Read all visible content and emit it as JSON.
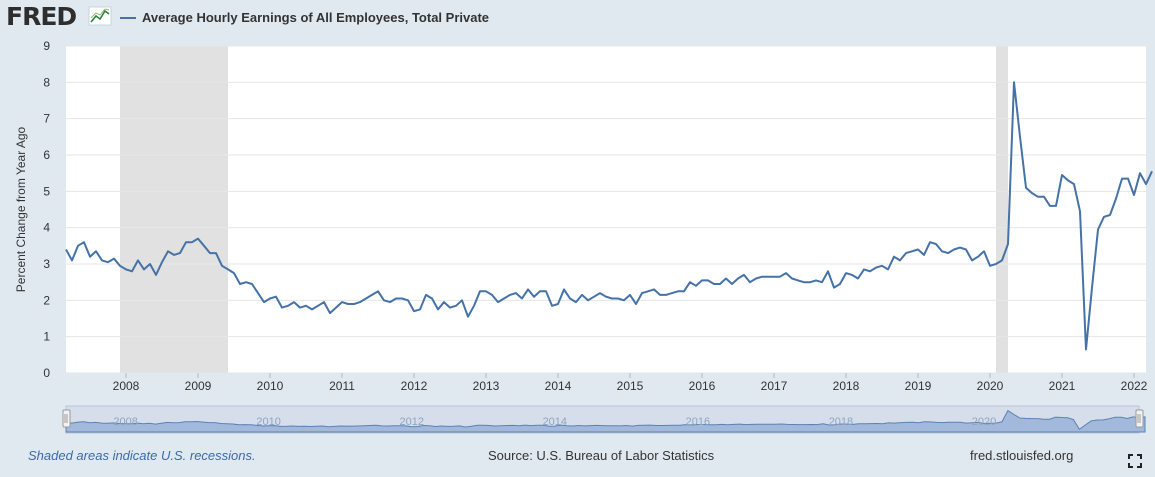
{
  "header": {
    "logo_text": "FRED",
    "legend_label": "Average Hourly Earnings of All Employees, Total Private"
  },
  "colors": {
    "series": "#4572a7",
    "recession": "#e1e1e1",
    "background": "#e1e9f0",
    "navigator": "#a3b9dc"
  },
  "footer": {
    "recession_note": "Shaded areas indicate U.S. recessions.",
    "source": "Source: U.S. Bureau of Labor Statistics",
    "site": "fred.stlouisfed.org"
  },
  "icons": {
    "fullscreen": "fullscreen-icon",
    "logo_graph": "chart-logo-icon"
  },
  "chart_data": {
    "type": "line",
    "title": "",
    "xlabel": "",
    "ylabel": "Percent Change from Year Ago",
    "ylim": [
      0,
      9
    ],
    "yticks": [
      0,
      1,
      2,
      3,
      4,
      5,
      6,
      7,
      8,
      9
    ],
    "xticks": [
      "2008",
      "2009",
      "2010",
      "2011",
      "2012",
      "2013",
      "2014",
      "2015",
      "2016",
      "2017",
      "2018",
      "2019",
      "2020",
      "2021",
      "2022"
    ],
    "navigator_ticks": [
      "2008",
      "2010",
      "2012",
      "2014",
      "2016",
      "2018",
      "2020"
    ],
    "xlim": [
      "2007-03",
      "2022-03"
    ],
    "grid": "horizontal",
    "recessions": [
      [
        "2007-12",
        "2009-06"
      ],
      [
        "2020-02",
        "2020-04"
      ]
    ],
    "series": [
      {
        "name": "Average Hourly Earnings of All Employees, Total Private",
        "start": "2007-03",
        "frequency": "monthly",
        "values": [
          3.4,
          3.1,
          3.5,
          3.6,
          3.2,
          3.35,
          3.1,
          3.05,
          3.15,
          2.95,
          2.85,
          2.8,
          3.1,
          2.85,
          3.0,
          2.7,
          3.05,
          3.35,
          3.25,
          3.3,
          3.6,
          3.6,
          3.7,
          3.5,
          3.3,
          3.3,
          2.95,
          2.85,
          2.75,
          2.45,
          2.5,
          2.45,
          2.2,
          1.95,
          2.05,
          2.1,
          1.8,
          1.85,
          1.95,
          1.8,
          1.85,
          1.75,
          1.85,
          1.95,
          1.65,
          1.8,
          1.95,
          1.9,
          1.9,
          1.95,
          2.05,
          2.15,
          2.25,
          2.0,
          1.95,
          2.05,
          2.05,
          2.0,
          1.7,
          1.75,
          2.15,
          2.05,
          1.75,
          1.95,
          1.8,
          1.85,
          2.0,
          1.55,
          1.85,
          2.25,
          2.25,
          2.15,
          1.95,
          2.05,
          2.15,
          2.2,
          2.05,
          2.3,
          2.1,
          2.25,
          2.25,
          1.85,
          1.9,
          2.3,
          2.05,
          1.95,
          2.15,
          2.0,
          2.1,
          2.2,
          2.1,
          2.05,
          2.05,
          2.0,
          2.15,
          1.9,
          2.2,
          2.25,
          2.3,
          2.15,
          2.15,
          2.2,
          2.25,
          2.25,
          2.5,
          2.4,
          2.55,
          2.55,
          2.45,
          2.45,
          2.6,
          2.45,
          2.6,
          2.7,
          2.5,
          2.6,
          2.65,
          2.65,
          2.65,
          2.65,
          2.75,
          2.6,
          2.55,
          2.5,
          2.5,
          2.55,
          2.5,
          2.8,
          2.35,
          2.45,
          2.75,
          2.7,
          2.6,
          2.85,
          2.8,
          2.9,
          2.95,
          2.85,
          3.2,
          3.1,
          3.3,
          3.35,
          3.4,
          3.25,
          3.6,
          3.55,
          3.35,
          3.3,
          3.4,
          3.45,
          3.4,
          3.1,
          3.2,
          3.35,
          2.95,
          3.0,
          3.1,
          3.55,
          8.0,
          6.5,
          5.1,
          4.95,
          4.85,
          4.85,
          4.6,
          4.6,
          5.45,
          5.3,
          5.2,
          4.45,
          0.65,
          2.35,
          3.95,
          4.3,
          4.35,
          4.8,
          5.35,
          5.35,
          4.9,
          5.5,
          5.2,
          5.55
        ]
      }
    ]
  }
}
